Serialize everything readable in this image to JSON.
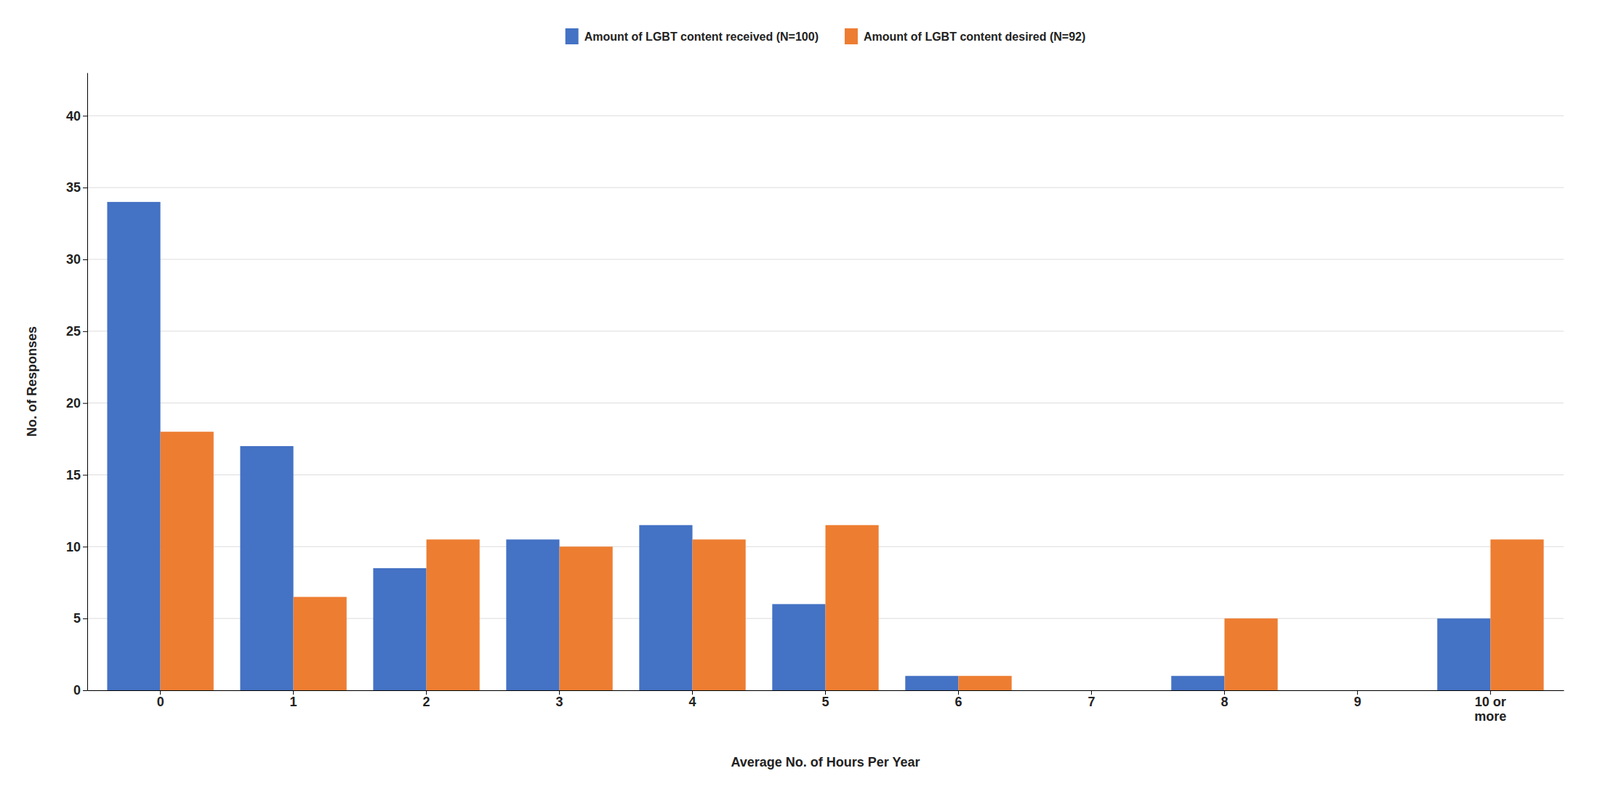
{
  "chart_data": {
    "type": "bar",
    "xlabel": "Average No. of Hours Per Year",
    "ylabel": "No. of Responses",
    "categories": [
      "0",
      "1",
      "2",
      "3",
      "4",
      "5",
      "6",
      "7",
      "8",
      "9",
      "10 or\nmore"
    ],
    "series": [
      {
        "name": "Amount of LGBT content received (N=100)",
        "color": "#4472C4",
        "values": [
          34,
          17,
          8.5,
          10.5,
          11.5,
          6,
          1,
          0,
          1,
          0,
          5
        ]
      },
      {
        "name": "Amount of LGBT content desired (N=92)",
        "color": "#ED7D31",
        "values": [
          18,
          6.5,
          10.5,
          10,
          10.5,
          11.5,
          1,
          0,
          5,
          0,
          10.5
        ]
      }
    ],
    "ylim": [
      0,
      43
    ],
    "yticks": [
      0,
      5,
      10,
      15,
      20,
      25,
      30,
      35,
      40
    ],
    "grid": true,
    "legend": "top"
  }
}
